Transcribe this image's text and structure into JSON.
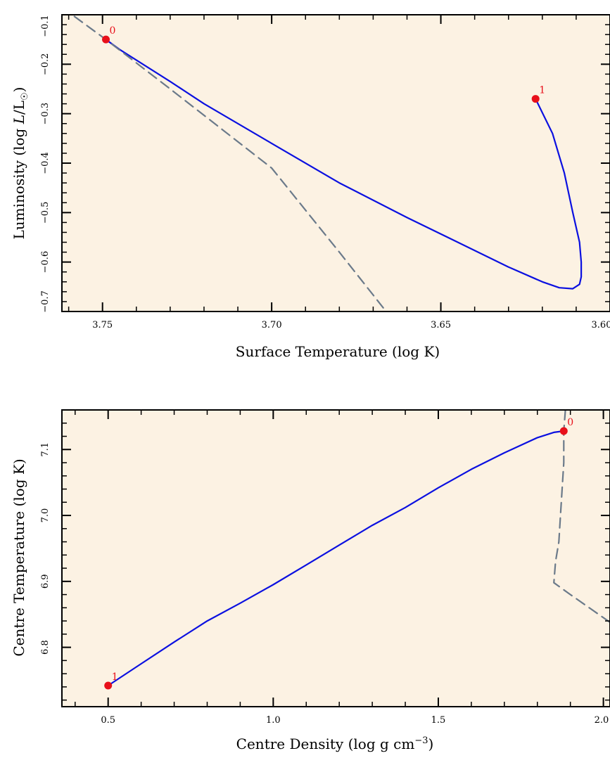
{
  "chart_data": [
    {
      "type": "line",
      "xlabel": "Surface Temperature (log K)",
      "ylabel": "Luminosity (log L/L☉)",
      "xlim": [
        3.762,
        3.6
      ],
      "ylim": [
        -0.7,
        -0.1
      ],
      "x_reversed": true,
      "xticks": [
        3.75,
        3.7,
        3.65,
        3.6
      ],
      "xtick_labels": [
        "3.75",
        "3.70",
        "3.65",
        "3.60"
      ],
      "yticks": [
        -0.7,
        -0.6,
        -0.5,
        -0.4,
        -0.3,
        -0.2,
        -0.1
      ],
      "ytick_labels": [
        "−0.7",
        "−0.6",
        "−0.5",
        "−0.4",
        "−0.3",
        "−0.2",
        "−0.1"
      ],
      "grid": false,
      "background_color": "#fcf2e3",
      "series": [
        {
          "style": "solid",
          "color": "#0b10e0",
          "x": [
            3.749,
            3.745,
            3.73,
            3.72,
            3.7,
            3.68,
            3.66,
            3.645,
            3.63,
            3.62,
            3.615,
            3.611,
            3.609,
            3.6085,
            3.6085,
            3.609,
            3.611,
            3.6135,
            3.617,
            3.622
          ],
          "y": [
            -0.15,
            -0.17,
            -0.235,
            -0.28,
            -0.36,
            -0.44,
            -0.51,
            -0.56,
            -0.61,
            -0.64,
            -0.652,
            -0.654,
            -0.645,
            -0.63,
            -0.6,
            -0.56,
            -0.5,
            -0.42,
            -0.34,
            -0.27
          ]
        },
        {
          "style": "dashed",
          "color": "#6b7a8a",
          "x": [
            3.762,
            3.749,
            3.73,
            3.7,
            3.68,
            3.665
          ],
          "y": [
            -0.085,
            -0.15,
            -0.25,
            -0.41,
            -0.58,
            -0.71
          ]
        }
      ],
      "points": [
        {
          "label": "0",
          "x": 3.749,
          "y": -0.15,
          "color": "#e8101a"
        },
        {
          "label": "1",
          "x": 3.622,
          "y": -0.27,
          "color": "#e8101a"
        }
      ]
    },
    {
      "type": "line",
      "xlabel": "Centre Density (log g cm⁻³)",
      "ylabel": "Centre Temperature (log K)",
      "xlim": [
        0.36,
        2.02
      ],
      "ylim": [
        6.71,
        7.16
      ],
      "xticks": [
        0.5,
        1.0,
        1.5,
        2.0
      ],
      "xtick_labels": [
        "0.5",
        "1.0",
        "1.5",
        "2.0"
      ],
      "yticks": [
        6.8,
        6.9,
        7.0,
        7.1
      ],
      "ytick_labels": [
        "6.8",
        "6.9",
        "7.0",
        "7.1"
      ],
      "grid": false,
      "background_color": "#fcf2e3",
      "series": [
        {
          "style": "solid",
          "color": "#0b10e0",
          "x": [
            0.5,
            0.6,
            0.7,
            0.8,
            0.9,
            1.0,
            1.1,
            1.2,
            1.3,
            1.4,
            1.5,
            1.6,
            1.7,
            1.8,
            1.85,
            1.88
          ],
          "y": [
            6.742,
            6.775,
            6.808,
            6.84,
            6.867,
            6.895,
            6.925,
            6.955,
            6.985,
            7.012,
            7.042,
            7.07,
            7.095,
            7.118,
            7.126,
            7.128
          ]
        },
        {
          "style": "dashed",
          "color": "#6b7a8a",
          "x": [
            1.885,
            1.88,
            1.88,
            1.87,
            1.865,
            1.855,
            1.85,
            1.9,
            2.02
          ],
          "y": [
            7.16,
            7.128,
            7.08,
            7.0,
            6.96,
            6.93,
            6.898,
            6.88,
            6.838
          ]
        }
      ],
      "points": [
        {
          "label": "0",
          "x": 1.88,
          "y": 7.128,
          "color": "#e8101a"
        },
        {
          "label": "1",
          "x": 0.5,
          "y": 6.742,
          "color": "#e8101a"
        }
      ]
    }
  ]
}
